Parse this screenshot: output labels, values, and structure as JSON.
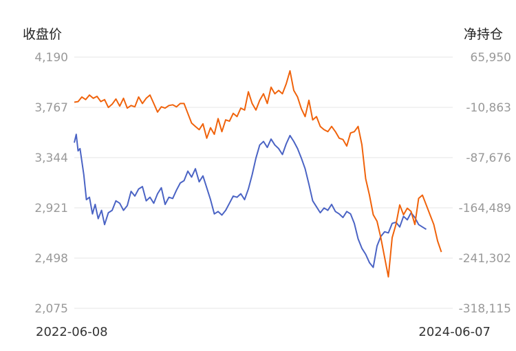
{
  "chart_data": {
    "type": "line",
    "left_axis": {
      "label": "收盘价",
      "ticks": [
        2075,
        2498,
        2921,
        3344,
        3767,
        4190
      ],
      "tick_labels": [
        "2,075",
        "2,498",
        "2,921",
        "3,344",
        "3,767",
        "4,190"
      ],
      "range": [
        2075,
        4190
      ]
    },
    "right_axis": {
      "label": "净持仓",
      "ticks": [
        -318115,
        -241302,
        -164489,
        -87676,
        -10863,
        65950
      ],
      "tick_labels": [
        "-318,115",
        "-241,302",
        "-164,489",
        "-87,676",
        "-10,863",
        "65,950"
      ],
      "range": [
        -318115,
        65950
      ]
    },
    "x_labels": {
      "start": "2022-06-08",
      "end": "2024-06-07"
    },
    "x_range": [
      0,
      100
    ],
    "grid": true,
    "legend": "none",
    "series": [
      {
        "axis": "left",
        "color": "#4a63c4",
        "points": [
          [
            0,
            3470
          ],
          [
            0.5,
            3540
          ],
          [
            1,
            3400
          ],
          [
            1.5,
            3420
          ],
          [
            2.5,
            3200
          ],
          [
            3.2,
            2990
          ],
          [
            4,
            3010
          ],
          [
            4.8,
            2870
          ],
          [
            5.5,
            2950
          ],
          [
            6.3,
            2830
          ],
          [
            7.2,
            2900
          ],
          [
            8,
            2780
          ],
          [
            9,
            2880
          ],
          [
            10,
            2900
          ],
          [
            11,
            2980
          ],
          [
            12,
            2960
          ],
          [
            13,
            2900
          ],
          [
            14,
            2940
          ],
          [
            15,
            3060
          ],
          [
            16,
            3020
          ],
          [
            17,
            3080
          ],
          [
            18,
            3100
          ],
          [
            19,
            2980
          ],
          [
            20,
            3010
          ],
          [
            21,
            2960
          ],
          [
            22,
            3040
          ],
          [
            23,
            3090
          ],
          [
            24,
            2950
          ],
          [
            25,
            3010
          ],
          [
            26,
            3000
          ],
          [
            27,
            3070
          ],
          [
            28,
            3130
          ],
          [
            29,
            3150
          ],
          [
            30,
            3230
          ],
          [
            31,
            3180
          ],
          [
            32,
            3250
          ],
          [
            33,
            3140
          ],
          [
            34,
            3190
          ],
          [
            35,
            3090
          ],
          [
            36,
            2990
          ],
          [
            37,
            2870
          ],
          [
            38,
            2890
          ],
          [
            39,
            2860
          ],
          [
            40,
            2900
          ],
          [
            41,
            2960
          ],
          [
            42,
            3020
          ],
          [
            43,
            3010
          ],
          [
            44,
            3040
          ],
          [
            45,
            2990
          ],
          [
            46,
            3080
          ],
          [
            47,
            3200
          ],
          [
            48,
            3340
          ],
          [
            49,
            3450
          ],
          [
            50,
            3480
          ],
          [
            51,
            3430
          ],
          [
            52,
            3500
          ],
          [
            53,
            3450
          ],
          [
            54,
            3420
          ],
          [
            55,
            3370
          ],
          [
            56,
            3460
          ],
          [
            57,
            3530
          ],
          [
            58,
            3480
          ],
          [
            59,
            3420
          ],
          [
            60,
            3340
          ],
          [
            61,
            3250
          ],
          [
            62,
            3120
          ],
          [
            63,
            2980
          ],
          [
            64,
            2930
          ],
          [
            65,
            2880
          ],
          [
            66,
            2920
          ],
          [
            67,
            2900
          ],
          [
            68,
            2950
          ],
          [
            69,
            2890
          ],
          [
            70,
            2870
          ],
          [
            71,
            2840
          ],
          [
            72,
            2890
          ],
          [
            73,
            2870
          ],
          [
            74,
            2790
          ],
          [
            75,
            2660
          ],
          [
            76,
            2580
          ],
          [
            77,
            2530
          ],
          [
            78,
            2460
          ],
          [
            79,
            2420
          ],
          [
            80,
            2600
          ],
          [
            81,
            2680
          ],
          [
            82,
            2720
          ],
          [
            83,
            2710
          ],
          [
            84,
            2790
          ],
          [
            85,
            2800
          ],
          [
            86,
            2760
          ],
          [
            87,
            2850
          ],
          [
            88,
            2820
          ],
          [
            89,
            2880
          ],
          [
            90,
            2840
          ],
          [
            91,
            2780
          ],
          [
            92,
            2760
          ],
          [
            93,
            2740
          ]
        ]
      },
      {
        "axis": "right",
        "color": "#f0620a",
        "points": [
          [
            0,
            -3000
          ],
          [
            1,
            -2000
          ],
          [
            2,
            5000
          ],
          [
            3,
            1000
          ],
          [
            4,
            8000
          ],
          [
            5,
            3000
          ],
          [
            6,
            6000
          ],
          [
            7,
            -2000
          ],
          [
            8,
            1000
          ],
          [
            9,
            -11000
          ],
          [
            10,
            -6000
          ],
          [
            11,
            2000
          ],
          [
            12,
            -9000
          ],
          [
            13,
            3000
          ],
          [
            14,
            -12000
          ],
          [
            15,
            -8000
          ],
          [
            16,
            -10000
          ],
          [
            17,
            5000
          ],
          [
            18,
            -5000
          ],
          [
            19,
            3000
          ],
          [
            20,
            8000
          ],
          [
            21,
            -5000
          ],
          [
            22,
            -18000
          ],
          [
            23,
            -10000
          ],
          [
            24,
            -12000
          ],
          [
            25,
            -8000
          ],
          [
            26,
            -7000
          ],
          [
            27,
            -10000
          ],
          [
            28,
            -5000
          ],
          [
            29,
            -5000
          ],
          [
            30,
            -20000
          ],
          [
            31,
            -35000
          ],
          [
            32,
            -40000
          ],
          [
            33,
            -45000
          ],
          [
            34,
            -36000
          ],
          [
            35,
            -58000
          ],
          [
            36,
            -42000
          ],
          [
            37,
            -52000
          ],
          [
            38,
            -28000
          ],
          [
            39,
            -48000
          ],
          [
            40,
            -30000
          ],
          [
            41,
            -32000
          ],
          [
            42,
            -20000
          ],
          [
            43,
            -25000
          ],
          [
            44,
            -12000
          ],
          [
            45,
            -15000
          ],
          [
            46,
            13000
          ],
          [
            47,
            -5000
          ],
          [
            48,
            -15000
          ],
          [
            49,
            0
          ],
          [
            50,
            10000
          ],
          [
            51,
            -5000
          ],
          [
            52,
            20000
          ],
          [
            53,
            10000
          ],
          [
            54,
            15000
          ],
          [
            55,
            10000
          ],
          [
            56,
            25000
          ],
          [
            57,
            45000
          ],
          [
            58,
            15000
          ],
          [
            59,
            5000
          ],
          [
            60,
            -13000
          ],
          [
            61,
            -25000
          ],
          [
            62,
            0
          ],
          [
            63,
            -30000
          ],
          [
            64,
            -25000
          ],
          [
            65,
            -40000
          ],
          [
            66,
            -45000
          ],
          [
            67,
            -48000
          ],
          [
            68,
            -40000
          ],
          [
            69,
            -48000
          ],
          [
            70,
            -58000
          ],
          [
            71,
            -60000
          ],
          [
            72,
            -70000
          ],
          [
            73,
            -50000
          ],
          [
            74,
            -48000
          ],
          [
            75,
            -40000
          ],
          [
            76,
            -68000
          ],
          [
            77,
            -120000
          ],
          [
            78,
            -145000
          ],
          [
            79,
            -175000
          ],
          [
            80,
            -185000
          ],
          [
            81,
            -210000
          ],
          [
            82,
            -240000
          ],
          [
            83,
            -270000
          ],
          [
            84,
            -210000
          ],
          [
            85,
            -190000
          ],
          [
            86,
            -160000
          ],
          [
            87,
            -175000
          ],
          [
            88,
            -165000
          ],
          [
            89,
            -170000
          ],
          [
            90,
            -190000
          ],
          [
            91,
            -150000
          ],
          [
            92,
            -145000
          ],
          [
            93,
            -160000
          ],
          [
            94,
            -175000
          ],
          [
            95,
            -190000
          ],
          [
            96,
            -215000
          ],
          [
            97,
            -232000
          ]
        ]
      }
    ]
  }
}
